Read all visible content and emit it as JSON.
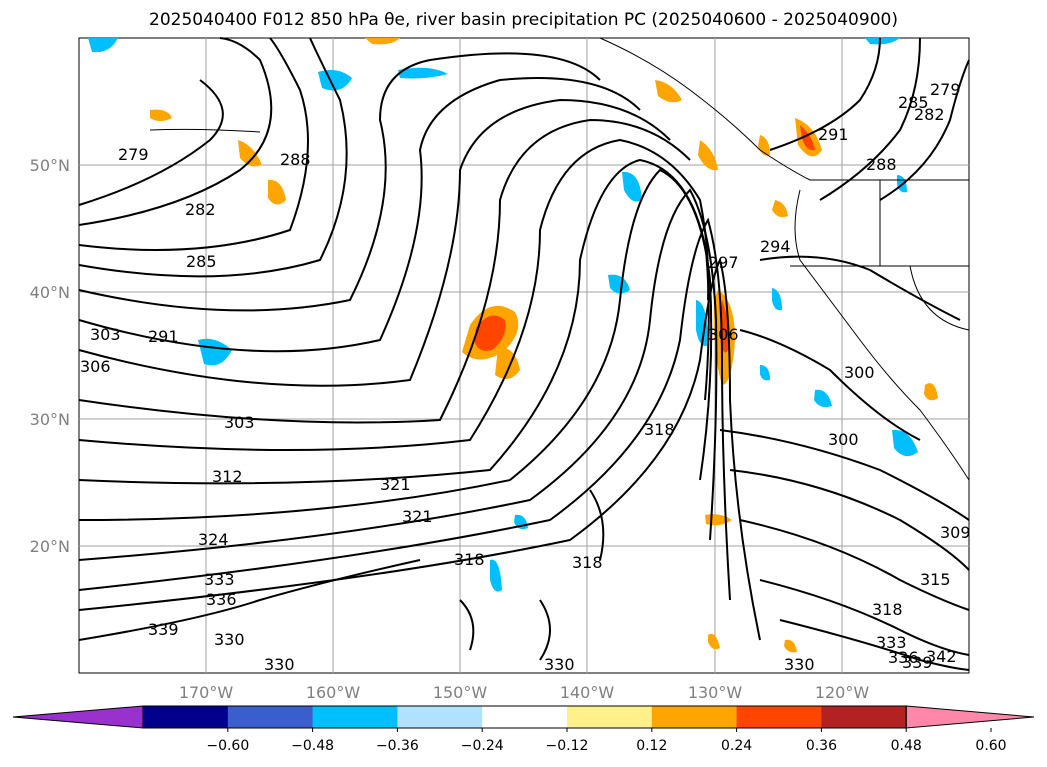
{
  "title": "2025040400 F012 850 hPa θe, river basin precipitation PC (2025040600 - 2025040900)",
  "map": {
    "lon_ticks": [
      "170°W",
      "160°W",
      "150°W",
      "140°W",
      "130°W",
      "120°W"
    ],
    "lat_ticks": [
      "50°N",
      "40°N",
      "30°N",
      "20°N"
    ],
    "contour_labels": [
      "279",
      "282",
      "285",
      "288",
      "291",
      "303",
      "306",
      "303",
      "312",
      "324",
      "333",
      "336",
      "339",
      "330",
      "330",
      "321",
      "321",
      "318",
      "318",
      "318",
      "300",
      "300",
      "294",
      "291",
      "288",
      "285",
      "282",
      "279",
      "297",
      "306",
      "309",
      "315",
      "318",
      "333",
      "336",
      "339",
      "342",
      "330",
      "330"
    ]
  },
  "colorbar": {
    "ticks": [
      "−0.60",
      "−0.48",
      "−0.36",
      "−0.24",
      "−0.12",
      "0.12",
      "0.24",
      "0.36",
      "0.48",
      "0.60"
    ],
    "colors": [
      "#9932cc",
      "#00008b",
      "#3a5fcd",
      "#00bfff",
      "#b0e2ff",
      "#ffffff",
      "#fff08a",
      "#ffa500",
      "#ff4500",
      "#b22222",
      "#ff88aa"
    ]
  }
}
